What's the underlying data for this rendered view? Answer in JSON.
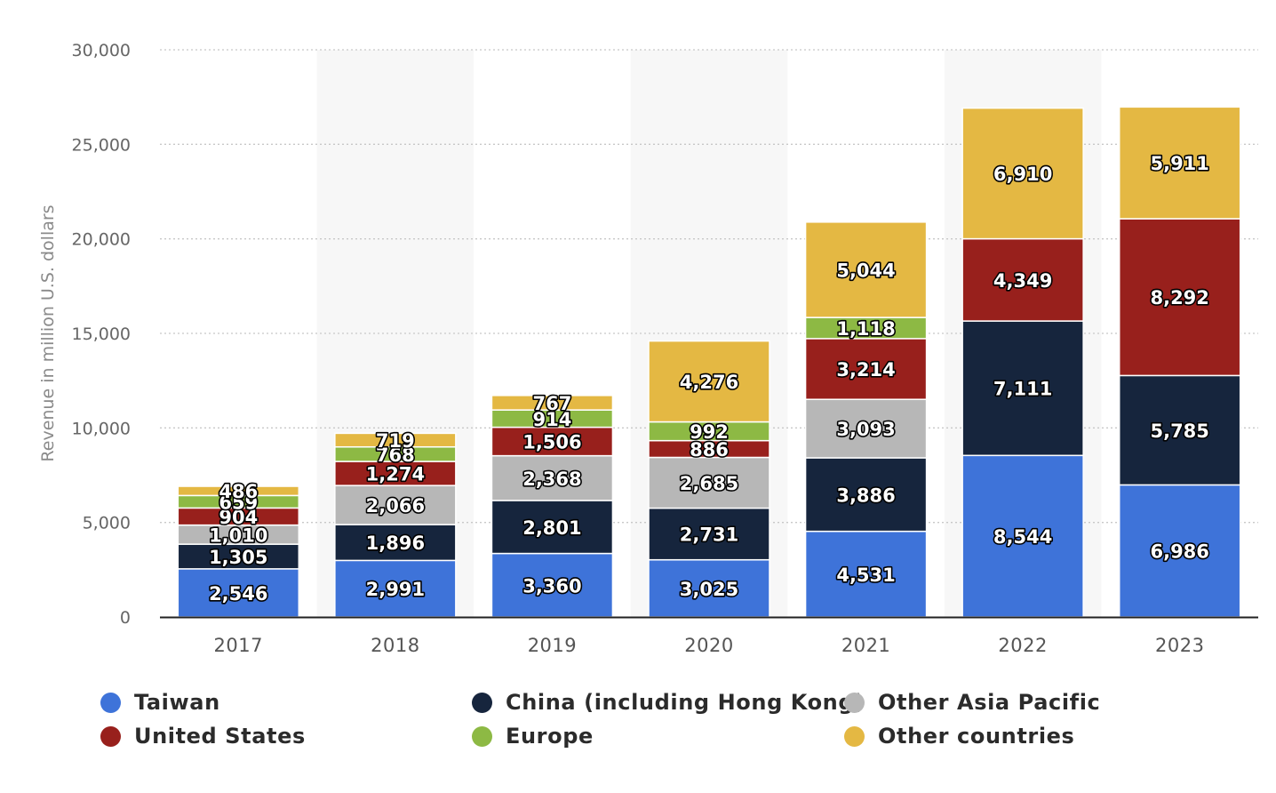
{
  "chart_data": {
    "type": "bar",
    "stacked": true,
    "categories": [
      "2017",
      "2018",
      "2019",
      "2020",
      "2021",
      "2022",
      "2023"
    ],
    "series": [
      {
        "name": "Taiwan",
        "color": "#3e73d9",
        "values": [
          2546,
          2991,
          3360,
          3025,
          4531,
          8544,
          6986
        ],
        "labels": [
          "2,546",
          "2,991",
          "3,360",
          "3,025",
          "4,531",
          "8,544",
          "6,986"
        ]
      },
      {
        "name": "China (including Hong Kong)",
        "color": "#16253d",
        "values": [
          1305,
          1896,
          2801,
          2731,
          3886,
          7111,
          5785
        ],
        "labels": [
          "1,305",
          "1,896",
          "2,801",
          "2,731",
          "3,886",
          "7,111",
          "5,785"
        ]
      },
      {
        "name": "Other Asia Pacific",
        "color": "#b7b7b7",
        "values": [
          1010,
          2066,
          2368,
          2685,
          3093,
          0,
          0
        ],
        "labels": [
          "1,010",
          "2,066",
          "2,368",
          "2,685",
          "3,093",
          "",
          ""
        ]
      },
      {
        "name": "United States",
        "color": "#98201c",
        "values": [
          904,
          1274,
          1506,
          886,
          3214,
          4349,
          8292
        ],
        "labels": [
          "904",
          "1,274",
          "1,506",
          "886",
          "3,214",
          "4,349",
          "8,292"
        ]
      },
      {
        "name": "Europe",
        "color": "#8db944",
        "values": [
          659,
          768,
          914,
          992,
          1118,
          0,
          0
        ],
        "labels": [
          "659",
          "768",
          "914",
          "992",
          "1,118",
          "",
          ""
        ]
      },
      {
        "name": "Other countries",
        "color": "#e4b843",
        "values": [
          486,
          719,
          767,
          4276,
          5044,
          6910,
          5911
        ],
        "labels": [
          "486",
          "719",
          "767",
          "4,276",
          "5,044",
          "6,910",
          "5,911"
        ]
      }
    ],
    "title": "",
    "xlabel": "",
    "ylabel": "Revenue in million U.S. dollars",
    "ylim": [
      0,
      30000
    ],
    "yticks": [
      0,
      5000,
      10000,
      15000,
      20000,
      25000,
      30000
    ],
    "ytick_labels": [
      "0",
      "5,000",
      "10,000",
      "15,000",
      "20,000",
      "25,000",
      "30,000"
    ],
    "grid": true,
    "legend_position": "bottom"
  }
}
